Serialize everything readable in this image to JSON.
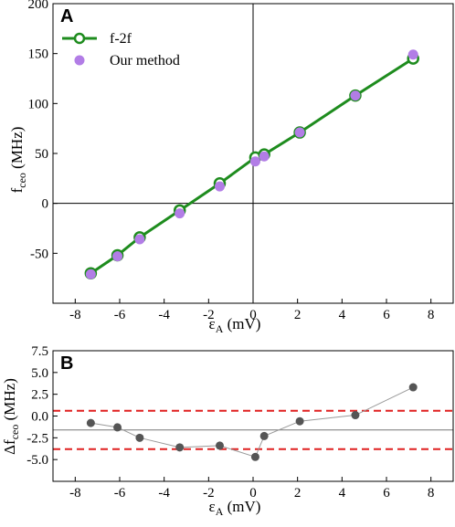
{
  "colors": {
    "fit_line": "#1e8c1e",
    "marker_purple": "#b27de6",
    "marker_gray": "#555555",
    "connector_gray": "#999999",
    "ref_red": "#e02020",
    "ref_mean": "#777777"
  },
  "chart_data": [
    {
      "panel": "A",
      "type": "scatter",
      "xlabel_main": "ε",
      "xlabel_sub": "A",
      "xlabel_unit": " (mV)",
      "ylabel_main": "f",
      "ylabel_sub": "ceo",
      "ylabel_unit": " (MHz)",
      "xlim": [
        -9,
        9
      ],
      "ylim": [
        -100,
        200
      ],
      "xticks": [
        -8,
        -6,
        -4,
        -2,
        0,
        2,
        4,
        6,
        8
      ],
      "yticks": [
        -50,
        0,
        50,
        100,
        150,
        200
      ],
      "ytick_labels": [
        "-50",
        "0",
        "50",
        "100",
        "150",
        "200"
      ],
      "zero_lines": true,
      "legend_position": "top-left",
      "series": [
        {
          "name": "f-2f",
          "style": "line-with-open-circles",
          "x": [
            -7.3,
            -6.1,
            -5.1,
            -3.3,
            -1.5,
            0.1,
            0.5,
            2.1,
            4.6,
            7.2
          ],
          "y": [
            -70,
            -52,
            -34,
            -7,
            20,
            46,
            49,
            71,
            108,
            145
          ]
        },
        {
          "name": "Our method",
          "style": "filled-circles",
          "x": [
            -7.3,
            -6.1,
            -5.1,
            -3.3,
            -1.5,
            0.1,
            0.5,
            2.1,
            4.6,
            7.2
          ],
          "y": [
            -71,
            -53,
            -36,
            -10,
            17,
            42,
            47,
            71,
            108,
            149
          ]
        }
      ]
    },
    {
      "panel": "B",
      "type": "scatter",
      "xlabel_main": "ε",
      "xlabel_sub": "A",
      "xlabel_unit": " (mV)",
      "ylabel_main": "Δf",
      "ylabel_sub": "ceo",
      "ylabel_unit": " (MHz)",
      "xlim": [
        -9,
        9
      ],
      "ylim": [
        -7.5,
        7.5
      ],
      "xticks": [
        -8,
        -6,
        -4,
        -2,
        0,
        2,
        4,
        6,
        8
      ],
      "yticks": [
        -7.5,
        -5.0,
        -2.5,
        0.0,
        2.5,
        5.0,
        7.5
      ],
      "ytick_labels": [
        "",
        "-5.0",
        "-2.5",
        "0.0",
        "2.5",
        "5.0",
        "7.5"
      ],
      "reference_lines": {
        "upper": 0.6,
        "mean": -1.6,
        "lower": -3.8
      },
      "series": [
        {
          "style": "connected-dots",
          "x": [
            -7.3,
            -6.1,
            -5.1,
            -3.3,
            -1.5,
            0.1,
            0.5,
            2.1,
            4.6,
            7.2
          ],
          "y": [
            -0.8,
            -1.3,
            -2.5,
            -3.6,
            -3.4,
            -4.7,
            -2.3,
            -0.6,
            0.1,
            3.3
          ]
        }
      ]
    }
  ]
}
